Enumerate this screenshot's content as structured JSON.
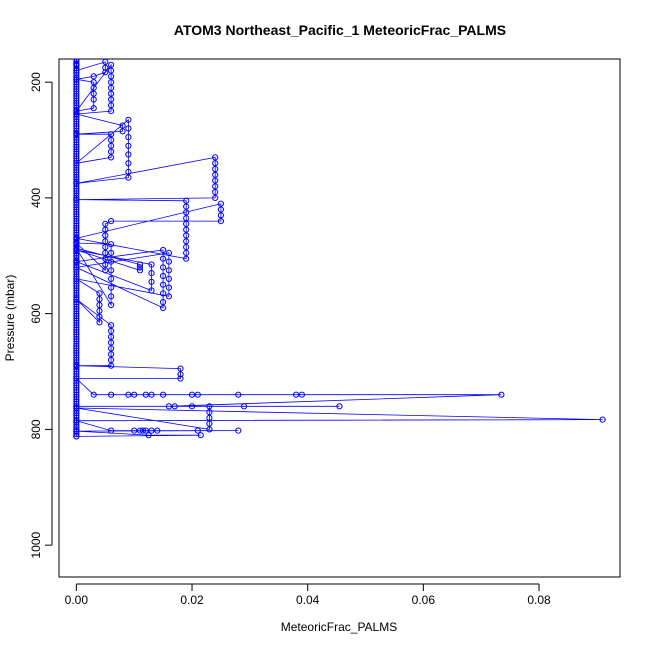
{
  "chart_data": {
    "type": "scatter",
    "title": "ATOM3 Northeast_Pacific_1 MeteoricFrac_PALMS",
    "xlabel": "MeteoricFrac_PALMS",
    "ylabel": "Pressure (mbar)",
    "xlim": [
      -0.003,
      0.094
    ],
    "ylim": [
      1055,
      160
    ],
    "y_reversed": true,
    "xticks": [
      0.0,
      0.02,
      0.04,
      0.06,
      0.08
    ],
    "xtick_labels": [
      "0.00",
      "0.02",
      "0.04",
      "0.06",
      "0.08"
    ],
    "yticks": [
      200,
      400,
      600,
      800,
      1000
    ],
    "ytick_labels": [
      "200",
      "400",
      "600",
      "800",
      "1000"
    ],
    "grid": false,
    "marker": "open-circle",
    "line": "connected",
    "series_color": "#0000ff",
    "series": [
      {
        "name": "",
        "points": [
          [
            0.0,
            160
          ],
          [
            0.0,
            170
          ],
          [
            0.0,
            180
          ],
          [
            0.005,
            165
          ],
          [
            0.005,
            175
          ],
          [
            0.005,
            183
          ],
          [
            0.003,
            190
          ],
          [
            0.0,
            195
          ],
          [
            0.003,
            200
          ],
          [
            0.003,
            210
          ],
          [
            0.003,
            220
          ],
          [
            0.003,
            230
          ],
          [
            0.003,
            245
          ],
          [
            0.0,
            250
          ],
          [
            0.006,
            170
          ],
          [
            0.006,
            180
          ],
          [
            0.006,
            190
          ],
          [
            0.006,
            200
          ],
          [
            0.006,
            210
          ],
          [
            0.006,
            220
          ],
          [
            0.006,
            230
          ],
          [
            0.006,
            240
          ],
          [
            0.006,
            250
          ],
          [
            0.0,
            255
          ],
          [
            0.008,
            275
          ],
          [
            0.008,
            285
          ],
          [
            0.0,
            290
          ],
          [
            0.006,
            290
          ],
          [
            0.006,
            300
          ],
          [
            0.006,
            310
          ],
          [
            0.006,
            320
          ],
          [
            0.006,
            330
          ],
          [
            0.0,
            340
          ],
          [
            0.009,
            265
          ],
          [
            0.009,
            280
          ],
          [
            0.009,
            295
          ],
          [
            0.009,
            310
          ],
          [
            0.009,
            325
          ],
          [
            0.009,
            340
          ],
          [
            0.009,
            355
          ],
          [
            0.009,
            365
          ],
          [
            0.0,
            375
          ],
          [
            0.024,
            330
          ],
          [
            0.024,
            340
          ],
          [
            0.024,
            350
          ],
          [
            0.024,
            360
          ],
          [
            0.024,
            370
          ],
          [
            0.024,
            380
          ],
          [
            0.024,
            390
          ],
          [
            0.024,
            400
          ],
          [
            0.0,
            403
          ],
          [
            0.019,
            405
          ],
          [
            0.019,
            415
          ],
          [
            0.019,
            425
          ],
          [
            0.019,
            435
          ],
          [
            0.019,
            445
          ],
          [
            0.019,
            455
          ],
          [
            0.019,
            465
          ],
          [
            0.019,
            475
          ],
          [
            0.019,
            485
          ],
          [
            0.019,
            495
          ],
          [
            0.019,
            505
          ],
          [
            0.0,
            470
          ],
          [
            0.025,
            410
          ],
          [
            0.025,
            420
          ],
          [
            0.025,
            430
          ],
          [
            0.025,
            440
          ],
          [
            0.006,
            440
          ],
          [
            0.005,
            445
          ],
          [
            0.005,
            455
          ],
          [
            0.005,
            465
          ],
          [
            0.005,
            475
          ],
          [
            0.005,
            485
          ],
          [
            0.005,
            495
          ],
          [
            0.005,
            505
          ],
          [
            0.005,
            515
          ],
          [
            0.005,
            525
          ],
          [
            0.0,
            478
          ],
          [
            0.006,
            480
          ],
          [
            0.006,
            495
          ],
          [
            0.006,
            510
          ],
          [
            0.006,
            525
          ],
          [
            0.006,
            540
          ],
          [
            0.006,
            555
          ],
          [
            0.006,
            570
          ],
          [
            0.006,
            585
          ],
          [
            0.0,
            487
          ],
          [
            0.011,
            515
          ],
          [
            0.011,
            520
          ],
          [
            0.011,
            525
          ],
          [
            0.0,
            490
          ],
          [
            0.013,
            515
          ],
          [
            0.013,
            530
          ],
          [
            0.013,
            545
          ],
          [
            0.013,
            560
          ],
          [
            0.0,
            510
          ],
          [
            0.015,
            490
          ],
          [
            0.015,
            505
          ],
          [
            0.015,
            520
          ],
          [
            0.015,
            535
          ],
          [
            0.015,
            550
          ],
          [
            0.015,
            565
          ],
          [
            0.015,
            580
          ],
          [
            0.015,
            590
          ],
          [
            0.0,
            520
          ],
          [
            0.016,
            495
          ],
          [
            0.016,
            510
          ],
          [
            0.016,
            525
          ],
          [
            0.016,
            540
          ],
          [
            0.016,
            555
          ],
          [
            0.016,
            570
          ],
          [
            0.0,
            540
          ],
          [
            0.004,
            565
          ],
          [
            0.004,
            575
          ],
          [
            0.004,
            585
          ],
          [
            0.004,
            595
          ],
          [
            0.004,
            605
          ],
          [
            0.004,
            615
          ],
          [
            0.0,
            575
          ],
          [
            0.006,
            620
          ],
          [
            0.006,
            630
          ],
          [
            0.006,
            640
          ],
          [
            0.006,
            650
          ],
          [
            0.006,
            660
          ],
          [
            0.006,
            670
          ],
          [
            0.006,
            680
          ],
          [
            0.006,
            690
          ],
          [
            0.0,
            690
          ],
          [
            0.018,
            695
          ],
          [
            0.018,
            705
          ],
          [
            0.018,
            712
          ],
          [
            0.0,
            712
          ],
          [
            0.003,
            740
          ],
          [
            0.006,
            740
          ],
          [
            0.009,
            740
          ],
          [
            0.01,
            740
          ],
          [
            0.012,
            740
          ],
          [
            0.013,
            740
          ],
          [
            0.015,
            740
          ],
          [
            0.02,
            740
          ],
          [
            0.021,
            740
          ],
          [
            0.028,
            740
          ],
          [
            0.038,
            740
          ],
          [
            0.039,
            740
          ],
          [
            0.0735,
            740
          ],
          [
            0.016,
            760
          ],
          [
            0.017,
            760
          ],
          [
            0.02,
            760
          ],
          [
            0.029,
            760
          ],
          [
            0.0455,
            760
          ],
          [
            0.0,
            760
          ],
          [
            0.023,
            760
          ],
          [
            0.023,
            770
          ],
          [
            0.023,
            780
          ],
          [
            0.023,
            790
          ],
          [
            0.023,
            800
          ],
          [
            0.0,
            763
          ],
          [
            0.091,
            783
          ],
          [
            0.0,
            785
          ],
          [
            0.006,
            802
          ],
          [
            0.01,
            802
          ],
          [
            0.011,
            802
          ],
          [
            0.0115,
            802
          ],
          [
            0.012,
            802
          ],
          [
            0.013,
            802
          ],
          [
            0.014,
            802
          ],
          [
            0.021,
            802
          ],
          [
            0.028,
            802
          ],
          [
            0.0,
            803
          ],
          [
            0.0125,
            810
          ],
          [
            0.0215,
            810
          ],
          [
            0.0,
            812
          ]
        ]
      }
    ]
  }
}
